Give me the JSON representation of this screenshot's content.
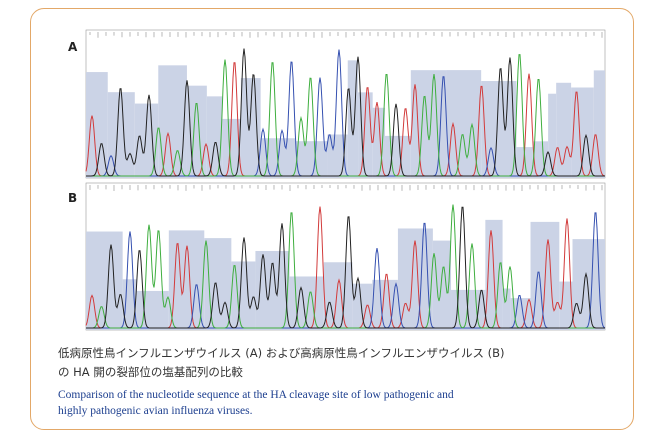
{
  "figure": {
    "panels": [
      {
        "label": "A"
      },
      {
        "label": "B"
      }
    ],
    "caption_ja": [
      "低病原性鳥インフルエンザウイルス (A) および高病原性鳥インフルエンザウイルス (B)",
      "の HA 開の裂部位の塩基配列の比較"
    ],
    "caption_en": [
      "Comparison of the nucleotide sequence at the HA cleavage site of low pathogenic and",
      "highly pathogenic avian influenza viruses."
    ]
  }
}
